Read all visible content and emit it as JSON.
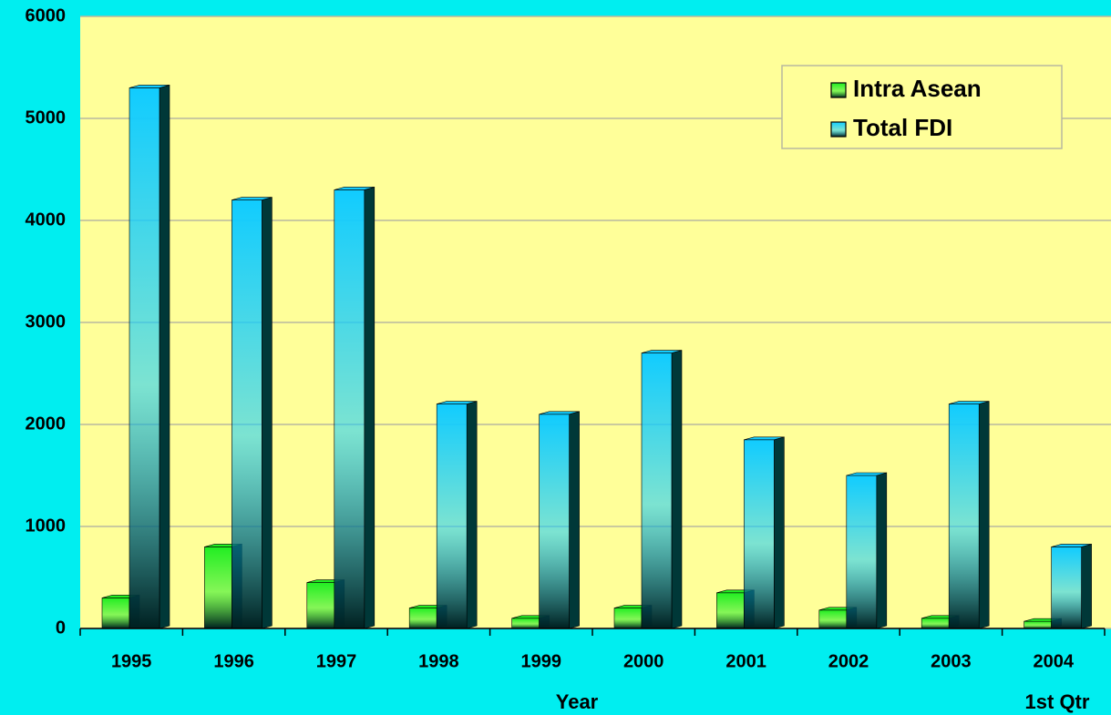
{
  "chart_data": {
    "type": "bar3d",
    "categories": [
      "1995",
      "1996",
      "1997",
      "1998",
      "1999",
      "2000",
      "2001",
      "2002",
      "2003",
      "2004"
    ],
    "note": "1st Qtr",
    "x_label": "Year",
    "series": [
      {
        "name": "Intra Asean",
        "color": "#22ee22",
        "values": [
          300,
          800,
          450,
          200,
          100,
          200,
          350,
          180,
          100,
          70
        ]
      },
      {
        "name": "Total FDI",
        "color": "#11ccff",
        "values": [
          5300,
          4200,
          4300,
          2200,
          2100,
          2700,
          1850,
          1500,
          2200,
          800
        ]
      }
    ],
    "ylim": [
      0,
      6000
    ],
    "yticks": [
      0,
      1000,
      2000,
      3000,
      4000,
      5000,
      6000
    ],
    "grid": true,
    "legend": "upper right"
  }
}
